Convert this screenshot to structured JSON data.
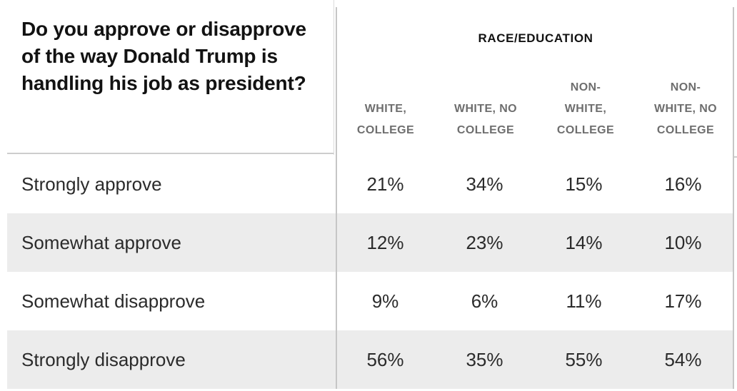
{
  "question": "Do you approve or disapprove of the way Donald Trump is handling his job as president?",
  "table": {
    "group_header": "RACE/EDUCATION",
    "columns": [
      {
        "label": "WHITE,\nCOLLEGE"
      },
      {
        "label": "WHITE, NO\nCOLLEGE"
      },
      {
        "label": "NON-\nWHITE,\nCOLLEGE"
      },
      {
        "label": "NON-\nWHITE, NO\nCOLLEGE"
      }
    ],
    "rows": [
      {
        "label": "Strongly approve",
        "values": [
          "21%",
          "34%",
          "15%",
          "16%"
        ]
      },
      {
        "label": "Somewhat approve",
        "values": [
          "12%",
          "23%",
          "14%",
          "10%"
        ]
      },
      {
        "label": "Somewhat disapprove",
        "values": [
          "9%",
          "6%",
          "11%",
          "17%"
        ]
      },
      {
        "label": "Strongly disapprove",
        "values": [
          "56%",
          "35%",
          "55%",
          "54%"
        ]
      }
    ]
  },
  "chart_data": {
    "type": "table",
    "title": "Do you approve or disapprove of the way Donald Trump is handling his job as president?",
    "column_group": "RACE/EDUCATION",
    "columns": [
      "WHITE, COLLEGE",
      "WHITE, NO COLLEGE",
      "NON-WHITE, COLLEGE",
      "NON-WHITE, NO COLLEGE"
    ],
    "row_categories": [
      "Strongly approve",
      "Somewhat approve",
      "Somewhat disapprove",
      "Strongly disapprove"
    ],
    "values_percent": [
      [
        21,
        34,
        15,
        16
      ],
      [
        12,
        23,
        14,
        10
      ],
      [
        9,
        6,
        11,
        17
      ],
      [
        56,
        35,
        55,
        54
      ]
    ]
  },
  "colors": {
    "title_text": "#121212",
    "body_text": "#2b2b2b",
    "header_text": "#6e6e6e",
    "zebra_row": "#ececec",
    "rule": "#cdcdcd",
    "table_border": "#c6c6c6"
  }
}
